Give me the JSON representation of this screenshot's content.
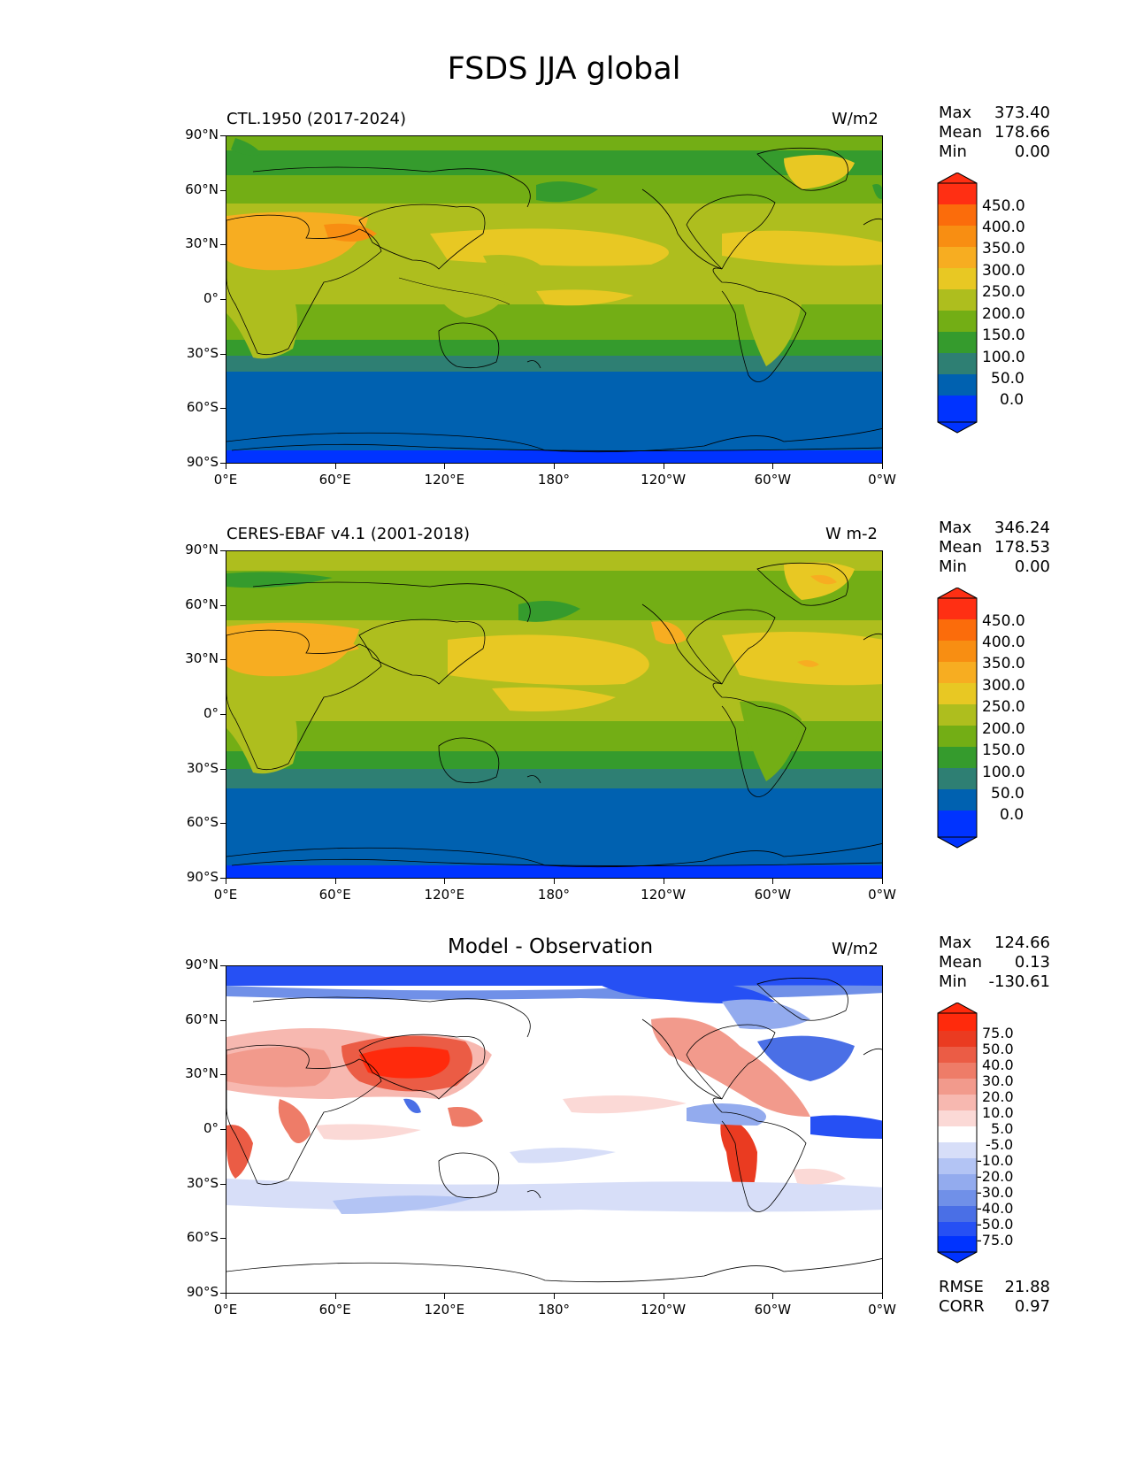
{
  "title": "FSDS JJA global",
  "lat_labels": [
    "90°N",
    "60°N",
    "30°N",
    "0°",
    "30°S",
    "60°S",
    "90°S"
  ],
  "lon_labels": [
    "0°E",
    "60°E",
    "120°E",
    "180°",
    "120°W",
    "60°W",
    "0°W"
  ],
  "panels": [
    {
      "left_label": "CTL.1950 (2017-2024)",
      "right_label": "W/m2",
      "max_label": "Max",
      "max": "373.40",
      "mean_label": "Mean",
      "mean": "178.66",
      "min_label": "Min",
      "min": "0.00",
      "colorbar_ticks": [
        "450.0",
        "400.0",
        "350.0",
        "300.0",
        "250.0",
        "200.0",
        "150.0",
        "100.0",
        "50.0",
        "0.0"
      ]
    },
    {
      "left_label": "CERES-EBAF v4.1 (2001-2018)",
      "right_label": "W m-2",
      "max_label": "Max",
      "max": "346.24",
      "mean_label": "Mean",
      "mean": "178.53",
      "min_label": "Min",
      "min": "0.00",
      "colorbar_ticks": [
        "450.0",
        "400.0",
        "350.0",
        "300.0",
        "250.0",
        "200.0",
        "150.0",
        "100.0",
        "50.0",
        "0.0"
      ]
    },
    {
      "center_title": "Model - Observation",
      "right_label": "W/m2",
      "max_label": "Max",
      "max": "124.66",
      "mean_label": "Mean",
      "mean": "0.13",
      "min_label": "Min",
      "min": "-130.61",
      "rmse_label": "RMSE",
      "rmse": "21.88",
      "corr_label": "CORR",
      "corr": "0.97",
      "colorbar_ticks": [
        "75.0",
        "50.0",
        "40.0",
        "30.0",
        "20.0",
        "10.0",
        "5.0",
        "-5.0",
        "-10.0",
        "-20.0",
        "-30.0",
        "-40.0",
        "-50.0",
        "-75.0"
      ]
    }
  ],
  "colors": {
    "fsds_scale": [
      "#0033ff",
      "#0061b0",
      "#2e7f73",
      "#359b2d",
      "#73ae15",
      "#aebe1e",
      "#e8c823",
      "#f7ad21",
      "#f88e12",
      "#fb6c0b",
      "#ff2f13"
    ],
    "diff_scale": [
      "#0033ff",
      "#2650f4",
      "#4a6fe6",
      "#7090e8",
      "#93abee",
      "#b3c4f4",
      "#d7def8",
      "#ffffff",
      "#fbd9d6",
      "#f7b8b0",
      "#f29a8c",
      "#ee7c68",
      "#eb5c45",
      "#ea3b21",
      "#ff2a0c"
    ]
  }
}
